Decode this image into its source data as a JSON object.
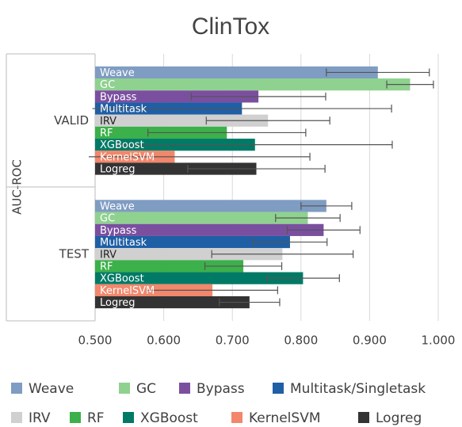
{
  "chart_data": {
    "type": "bar",
    "orientation": "horizontal",
    "title": "ClinTox",
    "y_label": "AUC-ROC",
    "categories": [
      "VALID",
      "TEST"
    ],
    "series": [
      {
        "name": "Weave",
        "bar_label": "Weave",
        "color": "#7f9cc2",
        "values": [
          0.912,
          0.837
        ],
        "errors": [
          0.075,
          0.037
        ]
      },
      {
        "name": "GC",
        "bar_label": "GC",
        "color": "#8fd18f",
        "values": [
          0.959,
          0.81
        ],
        "errors": [
          0.034,
          0.047
        ]
      },
      {
        "name": "Bypass",
        "bar_label": "Bypass",
        "color": "#7b4fa0",
        "values": [
          0.738,
          0.833
        ],
        "errors": [
          0.098,
          0.053
        ]
      },
      {
        "name": "Multitask/Singletask",
        "bar_label": "Multitask",
        "color": "#1f5fa5",
        "values": [
          0.714,
          0.784
        ],
        "errors": [
          0.218,
          0.054
        ]
      },
      {
        "name": "IRV",
        "bar_label": "IRV",
        "color": "#d0d0d0",
        "values": [
          0.752,
          0.773
        ],
        "errors": [
          0.09,
          0.103
        ]
      },
      {
        "name": "RF",
        "bar_label": "RF",
        "color": "#3cb04a",
        "values": [
          0.692,
          0.716
        ],
        "errors": [
          0.115,
          0.056
        ]
      },
      {
        "name": "XGBoost",
        "bar_label": "XGBoost",
        "color": "#007a66",
        "values": [
          0.733,
          0.803
        ],
        "errors": [
          0.2,
          0.053
        ]
      },
      {
        "name": "KernelSVM",
        "bar_label": "KernelSVM",
        "color": "#f2876b",
        "values": [
          0.616,
          0.671
        ],
        "errors": [
          0.197,
          0.095
        ]
      },
      {
        "name": "Logreg",
        "bar_label": "Logreg",
        "color": "#333333",
        "values": [
          0.735,
          0.725
        ],
        "errors": [
          0.1,
          0.044
        ]
      }
    ],
    "xlim": [
      0.5,
      1.0
    ],
    "xticks": [
      {
        "value": 0.5,
        "label": "0.500"
      },
      {
        "value": 0.6,
        "label": "0.600"
      },
      {
        "value": 0.7,
        "label": "0.700"
      },
      {
        "value": 0.8,
        "label": "0.800"
      },
      {
        "value": 0.9,
        "label": "0.900"
      },
      {
        "value": 1.0,
        "label": "1.000"
      }
    ],
    "grid": true
  }
}
